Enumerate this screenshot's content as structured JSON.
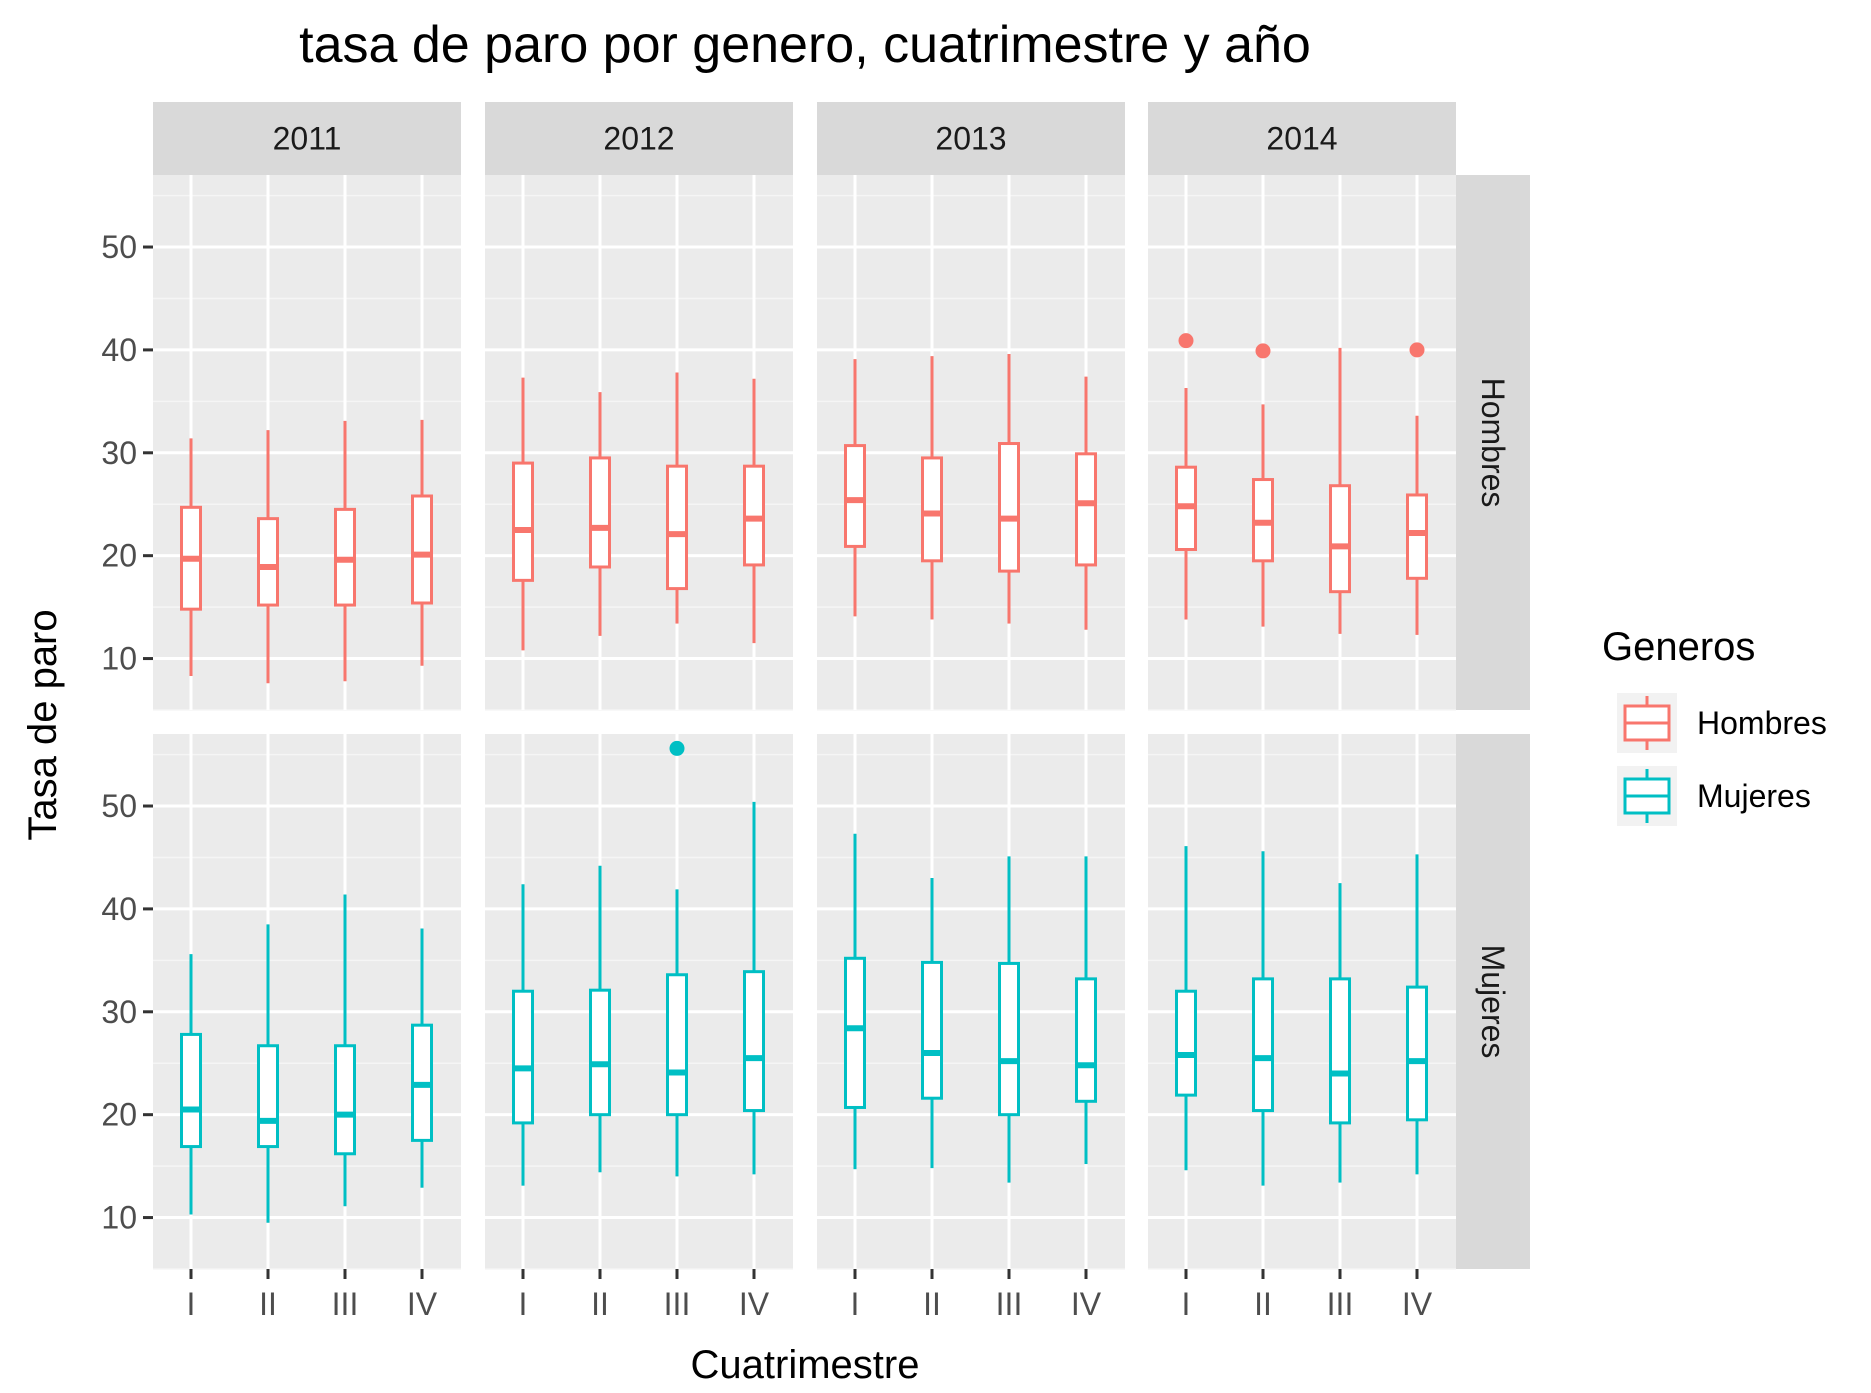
{
  "chart_data": {
    "type": "boxplot",
    "title": "tasa de paro por genero, cuatrimestre y año",
    "xlabel": "Cuatrimestre",
    "ylabel": "Tasa de paro",
    "ylim": [
      5,
      57
    ],
    "yticks": [
      10,
      20,
      30,
      40,
      50
    ],
    "categories": [
      "I",
      "II",
      "III",
      "IV"
    ],
    "facet_columns": [
      "2011",
      "2012",
      "2013",
      "2014"
    ],
    "facet_rows": [
      "Hombres",
      "Mujeres"
    ],
    "legend": {
      "title": "Generos",
      "entries": [
        {
          "label": "Hombres",
          "color": "#F8766D"
        },
        {
          "label": "Mujeres",
          "color": "#00BFC4"
        }
      ]
    },
    "colors": {
      "Hombres": "#F8766D",
      "Mujeres": "#00BFC4"
    },
    "panels": [
      {
        "row": "Hombres",
        "col": "2011",
        "boxes": [
          {
            "q": "I",
            "min": 8.3,
            "q1": 14.8,
            "median": 19.7,
            "q3": 24.7,
            "max": 31.4,
            "outliers": []
          },
          {
            "q": "II",
            "min": 7.6,
            "q1": 15.2,
            "median": 18.9,
            "q3": 23.6,
            "max": 32.2,
            "outliers": []
          },
          {
            "q": "III",
            "min": 7.8,
            "q1": 15.2,
            "median": 19.6,
            "q3": 24.5,
            "max": 33.1,
            "outliers": []
          },
          {
            "q": "IV",
            "min": 9.3,
            "q1": 15.4,
            "median": 20.1,
            "q3": 25.8,
            "max": 33.2,
            "outliers": []
          }
        ]
      },
      {
        "row": "Hombres",
        "col": "2012",
        "boxes": [
          {
            "q": "I",
            "min": 10.8,
            "q1": 17.6,
            "median": 22.5,
            "q3": 29.0,
            "max": 37.3,
            "outliers": []
          },
          {
            "q": "II",
            "min": 12.2,
            "q1": 18.9,
            "median": 22.7,
            "q3": 29.5,
            "max": 35.9,
            "outliers": []
          },
          {
            "q": "III",
            "min": 13.4,
            "q1": 16.8,
            "median": 22.1,
            "q3": 28.7,
            "max": 37.8,
            "outliers": []
          },
          {
            "q": "IV",
            "min": 11.5,
            "q1": 19.1,
            "median": 23.6,
            "q3": 28.7,
            "max": 37.2,
            "outliers": []
          }
        ]
      },
      {
        "row": "Hombres",
        "col": "2013",
        "boxes": [
          {
            "q": "I",
            "min": 14.1,
            "q1": 20.9,
            "median": 25.4,
            "q3": 30.7,
            "max": 39.1,
            "outliers": []
          },
          {
            "q": "II",
            "min": 13.8,
            "q1": 19.5,
            "median": 24.1,
            "q3": 29.5,
            "max": 39.4,
            "outliers": []
          },
          {
            "q": "III",
            "min": 13.4,
            "q1": 18.5,
            "median": 23.6,
            "q3": 30.9,
            "max": 39.6,
            "outliers": []
          },
          {
            "q": "IV",
            "min": 12.8,
            "q1": 19.1,
            "median": 25.1,
            "q3": 29.9,
            "max": 37.4,
            "outliers": []
          }
        ]
      },
      {
        "row": "Hombres",
        "col": "2014",
        "boxes": [
          {
            "q": "I",
            "min": 13.8,
            "q1": 20.6,
            "median": 24.8,
            "q3": 28.6,
            "max": 36.3,
            "outliers": [
              40.9
            ]
          },
          {
            "q": "II",
            "min": 13.1,
            "q1": 19.5,
            "median": 23.2,
            "q3": 27.4,
            "max": 34.7,
            "outliers": [
              39.9
            ]
          },
          {
            "q": "III",
            "min": 12.4,
            "q1": 16.5,
            "median": 20.9,
            "q3": 26.8,
            "max": 40.2,
            "outliers": []
          },
          {
            "q": "IV",
            "min": 12.3,
            "q1": 17.8,
            "median": 22.2,
            "q3": 25.9,
            "max": 33.6,
            "outliers": [
              40.0
            ]
          }
        ]
      },
      {
        "row": "Mujeres",
        "col": "2011",
        "boxes": [
          {
            "q": "I",
            "min": 10.3,
            "q1": 16.9,
            "median": 20.5,
            "q3": 27.8,
            "max": 35.6,
            "outliers": []
          },
          {
            "q": "II",
            "min": 9.5,
            "q1": 16.9,
            "median": 19.4,
            "q3": 26.7,
            "max": 38.5,
            "outliers": []
          },
          {
            "q": "III",
            "min": 11.1,
            "q1": 16.2,
            "median": 20.0,
            "q3": 26.7,
            "max": 41.4,
            "outliers": []
          },
          {
            "q": "IV",
            "min": 12.9,
            "q1": 17.5,
            "median": 22.9,
            "q3": 28.7,
            "max": 38.1,
            "outliers": []
          }
        ]
      },
      {
        "row": "Mujeres",
        "col": "2012",
        "boxes": [
          {
            "q": "I",
            "min": 13.1,
            "q1": 19.2,
            "median": 24.5,
            "q3": 32.0,
            "max": 42.4,
            "outliers": []
          },
          {
            "q": "II",
            "min": 14.4,
            "q1": 20.0,
            "median": 24.9,
            "q3": 32.1,
            "max": 44.2,
            "outliers": []
          },
          {
            "q": "III",
            "min": 14.0,
            "q1": 20.0,
            "median": 24.1,
            "q3": 33.6,
            "max": 41.9,
            "outliers": [
              55.6
            ]
          },
          {
            "q": "IV",
            "min": 14.2,
            "q1": 20.4,
            "median": 25.5,
            "q3": 33.9,
            "max": 50.4,
            "outliers": []
          }
        ]
      },
      {
        "row": "Mujeres",
        "col": "2013",
        "boxes": [
          {
            "q": "I",
            "min": 14.7,
            "q1": 20.7,
            "median": 28.4,
            "q3": 35.2,
            "max": 47.3,
            "outliers": []
          },
          {
            "q": "II",
            "min": 14.8,
            "q1": 21.6,
            "median": 26.0,
            "q3": 34.8,
            "max": 43.0,
            "outliers": []
          },
          {
            "q": "III",
            "min": 13.4,
            "q1": 20.0,
            "median": 25.2,
            "q3": 34.7,
            "max": 45.1,
            "outliers": []
          },
          {
            "q": "IV",
            "min": 15.2,
            "q1": 21.3,
            "median": 24.8,
            "q3": 33.2,
            "max": 45.1,
            "outliers": []
          }
        ]
      },
      {
        "row": "Mujeres",
        "col": "2014",
        "boxes": [
          {
            "q": "I",
            "min": 14.6,
            "q1": 21.9,
            "median": 25.8,
            "q3": 32.0,
            "max": 46.1,
            "outliers": []
          },
          {
            "q": "II",
            "min": 13.1,
            "q1": 20.4,
            "median": 25.5,
            "q3": 33.2,
            "max": 45.6,
            "outliers": []
          },
          {
            "q": "III",
            "min": 13.4,
            "q1": 19.2,
            "median": 24.0,
            "q3": 33.2,
            "max": 42.5,
            "outliers": []
          },
          {
            "q": "IV",
            "min": 14.2,
            "q1": 19.5,
            "median": 25.2,
            "q3": 32.4,
            "max": 45.3,
            "outliers": []
          }
        ]
      }
    ]
  }
}
